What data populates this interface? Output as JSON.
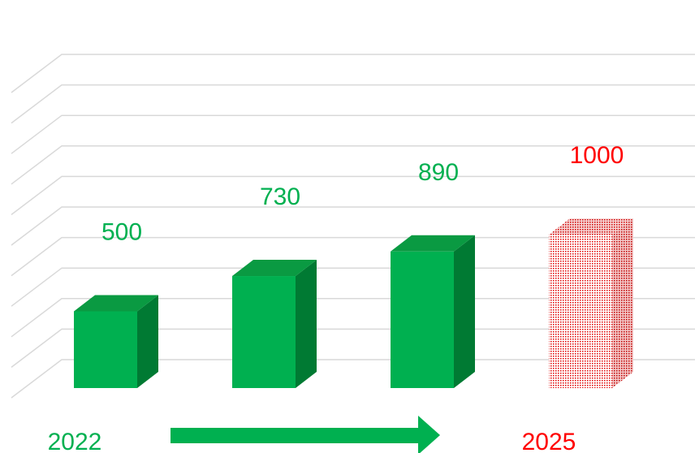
{
  "chart_data": {
    "type": "bar",
    "title": "",
    "xlabel": "",
    "ylabel": "",
    "categories": [
      "",
      "",
      "",
      ""
    ],
    "series": [
      {
        "values": [
          500,
          730,
          890,
          1000
        ]
      }
    ],
    "data_labels": [
      "500",
      "730",
      "890",
      "1000"
    ],
    "ylim": [
      0,
      1100
    ],
    "grid": true,
    "legend": "none",
    "three_d": true,
    "start_year_label": "2022",
    "end_year_label": "2025",
    "trend_arrow": "right",
    "colors": {
      "bar_front": "#00b050",
      "bar_top": "#0a9a42",
      "bar_side": "#007a33",
      "projected_pattern": "#ff0000",
      "label_actual": "#00b050",
      "label_projected": "#ff0000",
      "grid": "#d9d9d9",
      "arrow": "#00b050"
    },
    "projected_bars": [
      false,
      false,
      false,
      true
    ]
  }
}
